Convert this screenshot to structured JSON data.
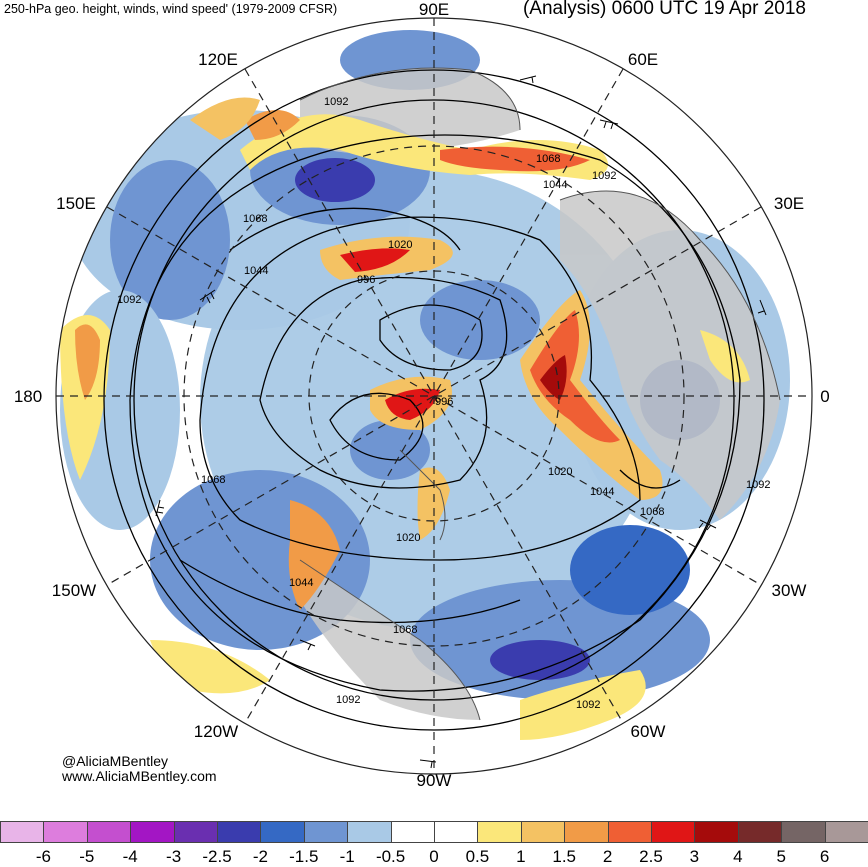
{
  "header": {
    "left_title": "250-hPa geo. height, winds, wind speed' (1979-2009 CFSR)",
    "right_title": "(Analysis) 0600 UTC 19 Apr 2018"
  },
  "longitude_labels": {
    "lon_90e": "90E",
    "lon_60e": "60E",
    "lon_120e": "120E",
    "lon_150e": "150E",
    "lon_30e": "30E",
    "lon_180": "180",
    "lon_0": "0",
    "lon_150w": "150W",
    "lon_30w": "30W",
    "lon_120w": "120W",
    "lon_60w": "60W",
    "lon_90w": "90W"
  },
  "contour_labels": [
    "1092",
    "1068",
    "1044",
    "1092",
    "1068",
    "1020",
    "996",
    "1044",
    "1092",
    "996",
    "1068",
    "1020",
    "1044",
    "1068",
    "1092",
    "1020",
    "1044",
    "1068",
    "1092",
    "1092"
  ],
  "credit": {
    "handle": "@AliciaMBentley",
    "url": "www.AliciaMBentley.com"
  },
  "colorbar": {
    "ticks": [
      "-6",
      "-5",
      "-4",
      "-3",
      "-2.5",
      "-2",
      "-1.5",
      "-1",
      "-0.5",
      "0",
      "0.5",
      "1",
      "1.5",
      "2",
      "2.5",
      "3",
      "4",
      "5",
      "6"
    ],
    "colors": [
      "#e8b4e8",
      "#dd7ddd",
      "#c44fcf",
      "#a316c4",
      "#6a2fb0",
      "#3a3cae",
      "#3569c4",
      "#6f95d2",
      "#a9c9e6",
      "#ffffff",
      "#ffffff",
      "#fbe77a",
      "#f4c263",
      "#f19b47",
      "#ef5f34",
      "#e01616",
      "#a50b0b",
      "#762a2a",
      "#756565",
      "#a89898"
    ]
  }
}
